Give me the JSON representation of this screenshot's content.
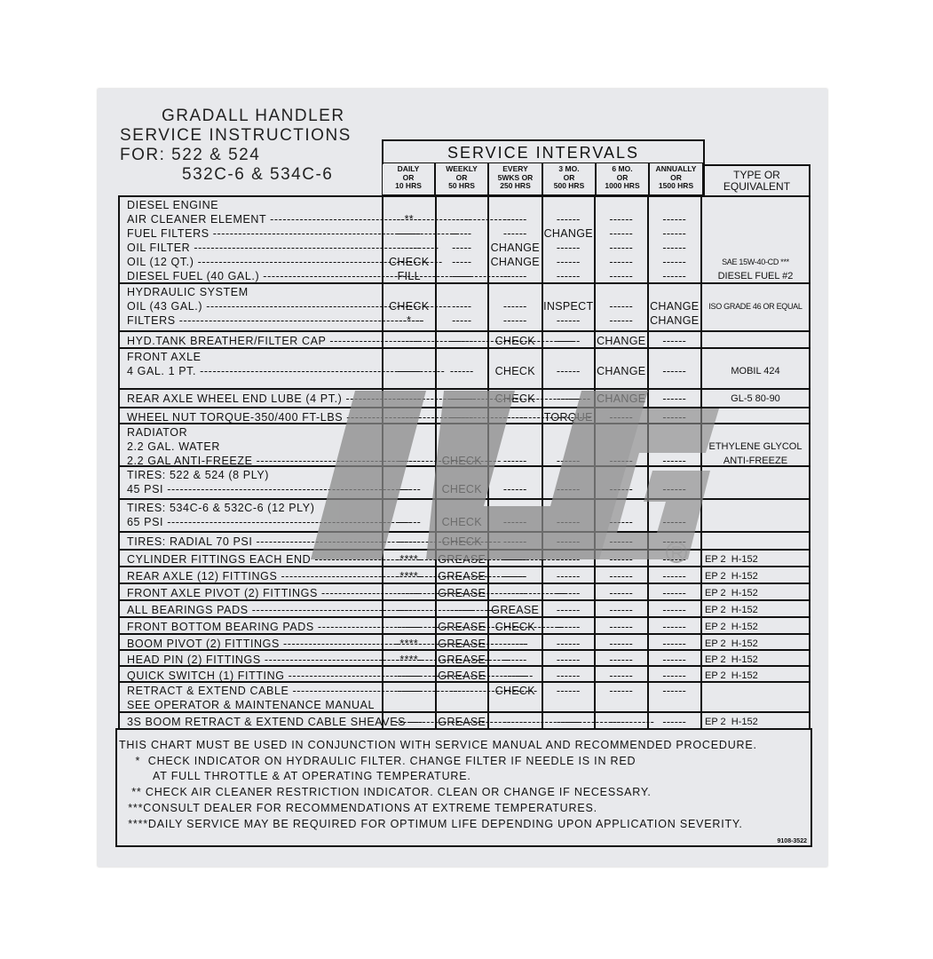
{
  "title": {
    "lines": [
      "GRADALL HANDLER",
      "SERVICE INSTRUCTIONS",
      "FOR: 522 & 524",
      "532C-6 & 534C-6"
    ]
  },
  "intervals_header": "SERVICE INTERVALS",
  "columns": [
    [
      "DAILY",
      "OR",
      "10 HRS"
    ],
    [
      "WEEKLY",
      "OR",
      "50 HRS"
    ],
    [
      "EVERY",
      "5WKS OR",
      "250 HRS"
    ],
    [
      "3 MO.",
      "OR",
      "500 HRS"
    ],
    [
      "6 MO.",
      "OR",
      "1000 HRS"
    ],
    [
      "ANNUALLY",
      "OR",
      "1500 HRS"
    ]
  ],
  "type_header": [
    "TYPE OR",
    "EQUIVALENT"
  ],
  "rows": [
    {
      "label": [
        "DIESEL ENGINE",
        "AIR CLEANER ELEMENT",
        "FUEL FILTERS",
        "OIL FILTER",
        "OIL (12 QT.)",
        "DIESEL FUEL (40 GAL.)"
      ],
      "cells": [
        [
          "",
          "--**--",
          "------",
          "------",
          "CHECK",
          "FILL"
        ],
        [
          "",
          "-----",
          "-----",
          "-----",
          "-----",
          "-----"
        ],
        [
          "",
          "------",
          "------",
          "CHANGE",
          "CHANGE",
          "------"
        ],
        [
          "",
          "------",
          "CHANGE",
          "------",
          "------",
          "------"
        ],
        [
          "",
          "------",
          "------",
          "------",
          "------",
          "------"
        ],
        [
          "",
          "------",
          "------",
          "------",
          "------",
          "------"
        ]
      ],
      "type": [
        "",
        "",
        "",
        "",
        "SAE 15W-40-CD ***",
        "DIESEL FUEL #2"
      ]
    },
    {
      "label": [
        "HYDRAULIC SYSTEM",
        "OIL (43 GAL.)",
        "FILTERS"
      ],
      "cells": [
        [
          "",
          "CHECK",
          "---*---"
        ],
        [
          "",
          "-----",
          "-----"
        ],
        [
          "",
          "------",
          "------"
        ],
        [
          "",
          "INSPECT",
          "------"
        ],
        [
          "",
          "------",
          "------"
        ],
        [
          "",
          "CHANGE",
          "CHANGE"
        ]
      ],
      "type": [
        "",
        "ISO GRADE 46 OR EQUAL",
        ""
      ]
    },
    {
      "label": [
        "HYD.TANK BREATHER/FILTER CAP"
      ],
      "cells": [
        [
          "------"
        ],
        [
          "------"
        ],
        [
          "CHECK"
        ],
        [
          "------"
        ],
        [
          "CHANGE"
        ],
        [
          "------"
        ]
      ],
      "type": [
        ""
      ]
    },
    {
      "label": [
        "FRONT AXLE",
        "4 GAL. 1 PT."
      ],
      "cells": [
        [
          "",
          "------"
        ],
        [
          "",
          "------"
        ],
        [
          "",
          "CHECK"
        ],
        [
          "",
          "------"
        ],
        [
          "",
          "CHANGE"
        ],
        [
          "",
          "------"
        ]
      ],
      "type": [
        "",
        "MOBIL 424"
      ]
    },
    {
      "label": [
        "REAR AXLE WHEEL END LUBE (4 PT.)"
      ],
      "cells": [
        [
          "------"
        ],
        [
          "------"
        ],
        [
          "CHECK"
        ],
        [
          "------"
        ],
        [
          "CHANGE"
        ],
        [
          "------"
        ]
      ],
      "type": [
        "GL-5 80-90"
      ]
    },
    {
      "label": [
        "WHEEL NUT TORQUE-350/400 FT-LBS"
      ],
      "cells": [
        [
          "------"
        ],
        [
          "------"
        ],
        [
          "------"
        ],
        [
          "TORQUE"
        ],
        [
          "------"
        ],
        [
          "------"
        ]
      ],
      "type": [
        ""
      ]
    },
    {
      "label": [
        "RADIATOR",
        "2.2 GAL. WATER",
        "2.2 GAL ANTI-FREEZE"
      ],
      "cells": [
        [
          "",
          "",
          "------"
        ],
        [
          "",
          "",
          "CHECK"
        ],
        [
          "",
          "",
          "------"
        ],
        [
          "",
          "",
          "------"
        ],
        [
          "",
          "",
          "------"
        ],
        [
          "",
          "",
          "------"
        ]
      ],
      "type": [
        "",
        "ETHYLENE GLYCOL",
        "ANTI-FREEZE"
      ]
    },
    {
      "label": [
        "TIRES: 522 & 524 (8 PLY)",
        "45 PSI"
      ],
      "cells": [
        [
          "",
          "------"
        ],
        [
          "",
          "CHECK"
        ],
        [
          "",
          "------"
        ],
        [
          "",
          "------"
        ],
        [
          "",
          "------"
        ],
        [
          "",
          "------"
        ]
      ],
      "type": [
        "",
        ""
      ]
    },
    {
      "label": [
        "TIRES: 534C-6 & 532C-6 (12 PLY)",
        "65 PSI"
      ],
      "cells": [
        [
          "",
          "------"
        ],
        [
          "",
          "CHECK"
        ],
        [
          "",
          "------"
        ],
        [
          "",
          "------"
        ],
        [
          "",
          "------"
        ],
        [
          "",
          "------"
        ]
      ],
      "type": [
        "",
        ""
      ]
    },
    {
      "label": [
        "TIRES: RADIAL 70 PSI"
      ],
      "cells": [
        [
          "------"
        ],
        [
          "CHECK"
        ],
        [
          "------"
        ],
        [
          "------"
        ],
        [
          "------"
        ],
        [
          "------"
        ]
      ],
      "type": [
        ""
      ]
    },
    {
      "label": [
        "CYLINDER FITTINGS EACH END"
      ],
      "cells": [
        [
          "-****-"
        ],
        [
          "GREASE"
        ],
        [
          "------"
        ],
        [
          "------"
        ],
        [
          "------"
        ],
        [
          "------"
        ]
      ],
      "type": [
        "EP 2  H-152"
      ]
    },
    {
      "label": [
        "REAR AXLE (12) FITTINGS"
      ],
      "cells": [
        [
          "-****-"
        ],
        [
          "GREASE"
        ],
        [
          "------"
        ],
        [
          "------"
        ],
        [
          "------"
        ],
        [
          "------"
        ]
      ],
      "type": [
        "EP 2  H-152"
      ]
    },
    {
      "label": [
        "FRONT AXLE PIVOT (2) FITTINGS"
      ],
      "cells": [
        [
          "------"
        ],
        [
          "GREASE"
        ],
        [
          "------"
        ],
        [
          "------"
        ],
        [
          "------"
        ],
        [
          "------"
        ]
      ],
      "type": [
        "EP 2  H-152"
      ]
    },
    {
      "label": [
        "ALL BEARINGS PADS"
      ],
      "cells": [
        [
          "------"
        ],
        [
          "------"
        ],
        [
          "GREASE"
        ],
        [
          "------"
        ],
        [
          "------"
        ],
        [
          "------"
        ]
      ],
      "type": [
        "EP 2  H-152"
      ]
    },
    {
      "label": [
        "FRONT BOTTOM BEARING PADS"
      ],
      "cells": [
        [
          "------"
        ],
        [
          "GREASE"
        ],
        [
          "CHECK"
        ],
        [
          "------"
        ],
        [
          "------"
        ],
        [
          "------"
        ]
      ],
      "type": [
        "EP 2  H-152"
      ]
    },
    {
      "label": [
        "BOOM PIVOT (2) FITTINGS"
      ],
      "cells": [
        [
          "-****-"
        ],
        [
          "GREASE"
        ],
        [
          "------"
        ],
        [
          "------"
        ],
        [
          "------"
        ],
        [
          "------"
        ]
      ],
      "type": [
        "EP 2  H-152"
      ]
    },
    {
      "label": [
        "HEAD PIN (2) FITTINGS"
      ],
      "cells": [
        [
          "-****-"
        ],
        [
          "GREASE"
        ],
        [
          "------"
        ],
        [
          "------"
        ],
        [
          "------"
        ],
        [
          "------"
        ]
      ],
      "type": [
        "EP 2  H-152"
      ]
    },
    {
      "label": [
        "QUICK SWITCH (1) FITTING"
      ],
      "cells": [
        [
          "------"
        ],
        [
          "GREASE"
        ],
        [
          "------"
        ],
        [
          "------"
        ],
        [
          "------"
        ],
        [
          "------"
        ]
      ],
      "type": [
        "EP 2  H-152"
      ]
    },
    {
      "label": [
        "RETRACT & EXTEND CABLE",
        "SEE OPERATOR & MAINTENANCE MANUAL"
      ],
      "cells": [
        [
          "------",
          ""
        ],
        [
          "------",
          ""
        ],
        [
          "CHECK",
          ""
        ],
        [
          "------",
          ""
        ],
        [
          "------",
          ""
        ],
        [
          "------",
          ""
        ]
      ],
      "type": [
        "",
        ""
      ]
    },
    {
      "label": [
        "3S BOOM RETRACT & EXTEND CABLE SHEAVES"
      ],
      "cells": [
        [
          "-------"
        ],
        [
          "GREASE"
        ],
        [
          "------"
        ],
        [
          "------"
        ],
        [
          "------"
        ],
        [
          "------"
        ]
      ],
      "type": [
        "EP 2  H-152"
      ]
    }
  ],
  "notes": [
    "THIS CHART MUST BE USED IN CONJUNCTION WITH SERVICE MANUAL AND RECOMMENDED PROCEDURE.",
    "  *  CHECK INDICATOR ON HYDRAULIC FILTER. CHANGE FILTER IF NEEDLE IS IN RED",
    "AT FULL THROTTLE & AT OPERATING TEMPERATURE.",
    " ** CHECK AIR CLEANER RESTRICTION INDICATOR. CLEAN OR CHANGE IF NECESSARY.",
    " ***CONSULT DEALER FOR RECOMMENDATIONS AT EXTREME TEMPERATURES.",
    " ****DAILY SERVICE MAY BE REQUIRED FOR OPTIMUM LIFE DEPENDING UPON APPLICATION SEVERITY."
  ],
  "part_number": "9108-3522",
  "watermark": {
    "text": "JUG",
    "mark": "®",
    "color": "#8a8a8a"
  }
}
